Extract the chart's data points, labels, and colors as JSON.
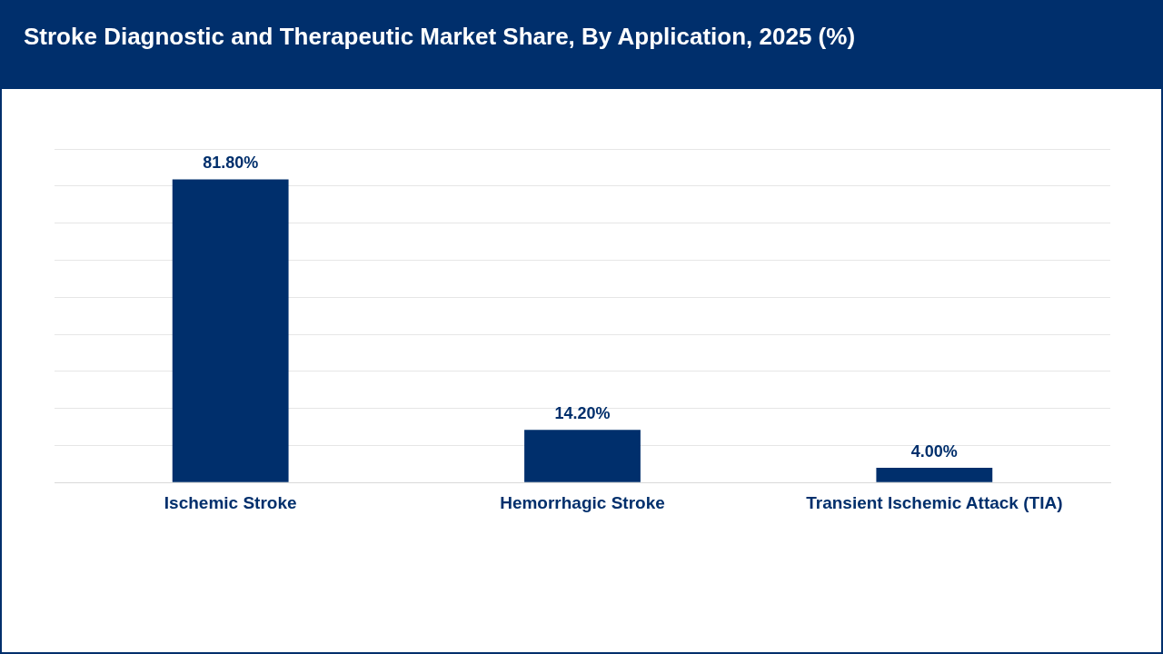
{
  "chart_data": {
    "type": "bar",
    "title": "Stroke Diagnostic and Therapeutic Market Share, By Application, 2025 (%)",
    "categories": [
      "Ischemic Stroke",
      "Hemorrhagic Stroke",
      "Transient Ischemic Attack (TIA)"
    ],
    "values": [
      81.8,
      14.2,
      4.0
    ],
    "color": "#002f6c",
    "value_labels": [
      "81.80%",
      "14.20%",
      "4.00%"
    ],
    "ylim": [
      0,
      90
    ],
    "yticks": [
      {
        "value": 0,
        "label": null
      },
      {
        "value": 10,
        "label": null
      },
      {
        "value": 20,
        "label": null
      },
      {
        "value": 30,
        "label": null
      },
      {
        "value": 40,
        "label": null
      },
      {
        "value": 50,
        "label": null
      },
      {
        "value": 60,
        "label": null
      },
      {
        "value": 70,
        "label": null
      },
      {
        "value": 80,
        "label": null
      },
      {
        "value": 90,
        "label": null
      }
    ],
    "grid": "y",
    "tick_labels": "x",
    "legend": false
  }
}
